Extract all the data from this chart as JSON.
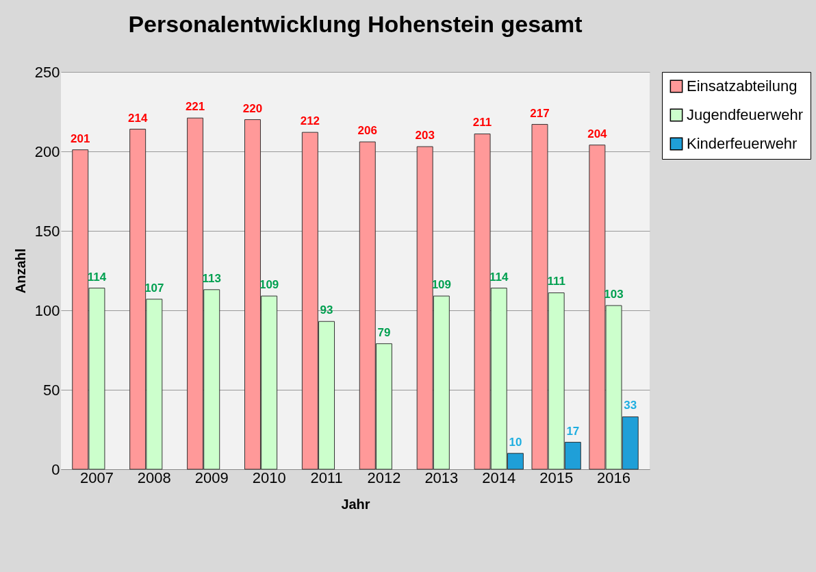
{
  "chart_data": {
    "type": "bar",
    "title": "Personalentwicklung Hohenstein gesamt",
    "xlabel": "Jahr",
    "ylabel": "Anzahl",
    "categories": [
      "2007",
      "2008",
      "2009",
      "2010",
      "2011",
      "2012",
      "2013",
      "2014",
      "2015",
      "2016"
    ],
    "series": [
      {
        "name": "Einsatzabteilung",
        "color": "#ff9999",
        "values": [
          201,
          214,
          221,
          220,
          212,
          206,
          203,
          211,
          217,
          204
        ]
      },
      {
        "name": "Jugendfeuerwehr",
        "color": "#ccffcc",
        "values": [
          114,
          107,
          113,
          109,
          93,
          79,
          109,
          114,
          111,
          103
        ]
      },
      {
        "name": "Kinderfeuerwehr",
        "color": "#1f9fd8",
        "values": [
          null,
          null,
          null,
          null,
          null,
          null,
          null,
          10,
          17,
          33
        ]
      }
    ],
    "ylim": [
      0,
      250
    ],
    "yticks": [
      0,
      50,
      100,
      150,
      200,
      250
    ],
    "grid": "y",
    "legend": "top right",
    "data_labels": true
  }
}
